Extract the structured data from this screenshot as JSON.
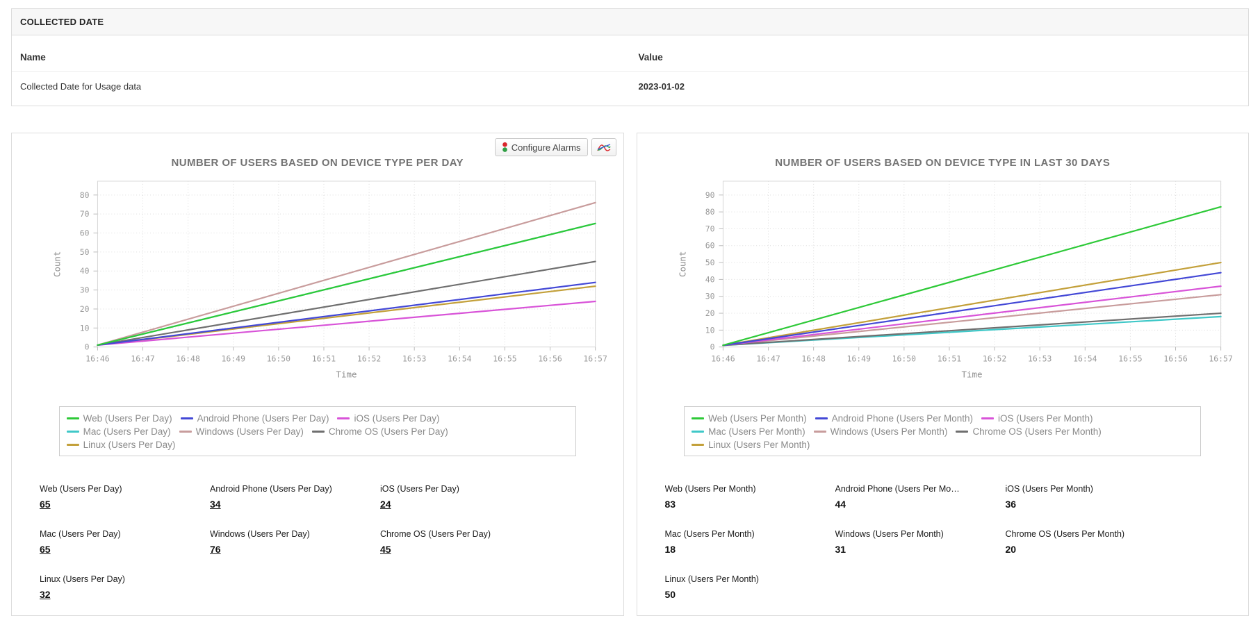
{
  "collected_date_panel": {
    "title": "COLLECTED DATE",
    "columns": {
      "name": "Name",
      "value": "Value"
    },
    "rows": [
      {
        "name": "Collected Date for Usage data",
        "value": "2023-01-02"
      }
    ]
  },
  "panels": [
    {
      "title": "NUMBER OF USERS BASED ON DEVICE TYPE PER DAY",
      "toolbar": {
        "configure_alarms_label": "Configure Alarms",
        "configure_alarms_icon": "traffic-light-icon",
        "chart_button_icon": "line-chart-icon"
      },
      "metrics_linked": true,
      "metrics": [
        {
          "label": "Web (Users Per Day)",
          "value": "65"
        },
        {
          "label": "Android Phone (Users Per Day)",
          "value": "34"
        },
        {
          "label": "iOS (Users Per Day)",
          "value": "24"
        },
        {
          "label": "Mac (Users Per Day)",
          "value": "65"
        },
        {
          "label": "Windows (Users Per Day)",
          "value": "76"
        },
        {
          "label": "Chrome OS (Users Per Day)",
          "value": "45"
        },
        {
          "label": "Linux (Users Per Day)",
          "value": "32"
        }
      ]
    },
    {
      "title": "NUMBER OF USERS BASED ON DEVICE TYPE IN LAST 30 DAYS",
      "metrics_linked": false,
      "metrics": [
        {
          "label": "Web (Users Per Month)",
          "value": "83"
        },
        {
          "label": "Android Phone (Users Per Month)",
          "value": "44"
        },
        {
          "label": "iOS (Users Per Month)",
          "value": "36"
        },
        {
          "label": "Mac (Users Per Month)",
          "value": "18"
        },
        {
          "label": "Windows (Users Per Month)",
          "value": "31"
        },
        {
          "label": "Chrome OS (Users Per Month)",
          "value": "20"
        },
        {
          "label": "Linux (Users Per Month)",
          "value": "50"
        }
      ]
    }
  ],
  "chart_data": [
    {
      "type": "line",
      "title": "NUMBER OF USERS BASED ON DEVICE TYPE PER DAY",
      "xlabel": "Time",
      "ylabel": "Count",
      "x": [
        "16:46",
        "16:47",
        "16:48",
        "16:49",
        "16:50",
        "16:51",
        "16:52",
        "16:53",
        "16:54",
        "16:55",
        "16:56",
        "16:57"
      ],
      "yticks": [
        0,
        10,
        20,
        30,
        40,
        50,
        60,
        70,
        80
      ],
      "ylim": [
        0,
        87
      ],
      "grid": true,
      "legend_position": "bottom",
      "line_shape": "linear from start at 16:46 to end at 16:57",
      "draw_order": [
        3,
        4,
        5,
        6,
        2,
        1,
        0
      ],
      "series": [
        {
          "name": "Web (Users Per Day)",
          "color": "#2dc937",
          "start": 1,
          "end": 65
        },
        {
          "name": "Android Phone (Users Per Day)",
          "color": "#4348d6",
          "start": 1,
          "end": 34
        },
        {
          "name": "iOS (Users Per Day)",
          "color": "#d853d8",
          "start": 1,
          "end": 24
        },
        {
          "name": "Mac (Users Per Day)",
          "color": "#3fc8c8",
          "start": 1,
          "end": 65
        },
        {
          "name": "Windows (Users Per Day)",
          "color": "#c89c9c",
          "start": 1,
          "end": 76
        },
        {
          "name": "Chrome OS (Users Per Day)",
          "color": "#6f6f6f",
          "start": 1,
          "end": 45
        },
        {
          "name": "Linux (Users Per Day)",
          "color": "#c3a03a",
          "start": 1,
          "end": 32
        }
      ]
    },
    {
      "type": "line",
      "title": "NUMBER OF USERS BASED ON DEVICE TYPE IN LAST 30 DAYS",
      "xlabel": "Time",
      "ylabel": "Count",
      "x": [
        "16:46",
        "16:47",
        "16:48",
        "16:49",
        "16:50",
        "16:51",
        "16:52",
        "16:53",
        "16:54",
        "16:55",
        "16:56",
        "16:57"
      ],
      "yticks": [
        0,
        10,
        20,
        30,
        40,
        50,
        60,
        70,
        80,
        90
      ],
      "ylim": [
        0,
        98
      ],
      "grid": true,
      "legend_position": "bottom",
      "line_shape": "linear from start at 16:46 to end at 16:57",
      "draw_order": [
        3,
        4,
        5,
        6,
        2,
        1,
        0
      ],
      "series": [
        {
          "name": "Web (Users Per Month)",
          "color": "#2dc937",
          "start": 1,
          "end": 83
        },
        {
          "name": "Android Phone (Users Per Month)",
          "color": "#4348d6",
          "start": 1,
          "end": 44
        },
        {
          "name": "iOS (Users Per Month)",
          "color": "#d853d8",
          "start": 1,
          "end": 36
        },
        {
          "name": "Mac (Users Per Month)",
          "color": "#3fc8c8",
          "start": 1,
          "end": 18
        },
        {
          "name": "Windows (Users Per Month)",
          "color": "#c89c9c",
          "start": 1,
          "end": 31
        },
        {
          "name": "Chrome OS (Users Per Month)",
          "color": "#6f6f6f",
          "start": 1,
          "end": 20
        },
        {
          "name": "Linux (Users Per Month)",
          "color": "#c3a03a",
          "start": 1,
          "end": 50
        }
      ]
    }
  ]
}
